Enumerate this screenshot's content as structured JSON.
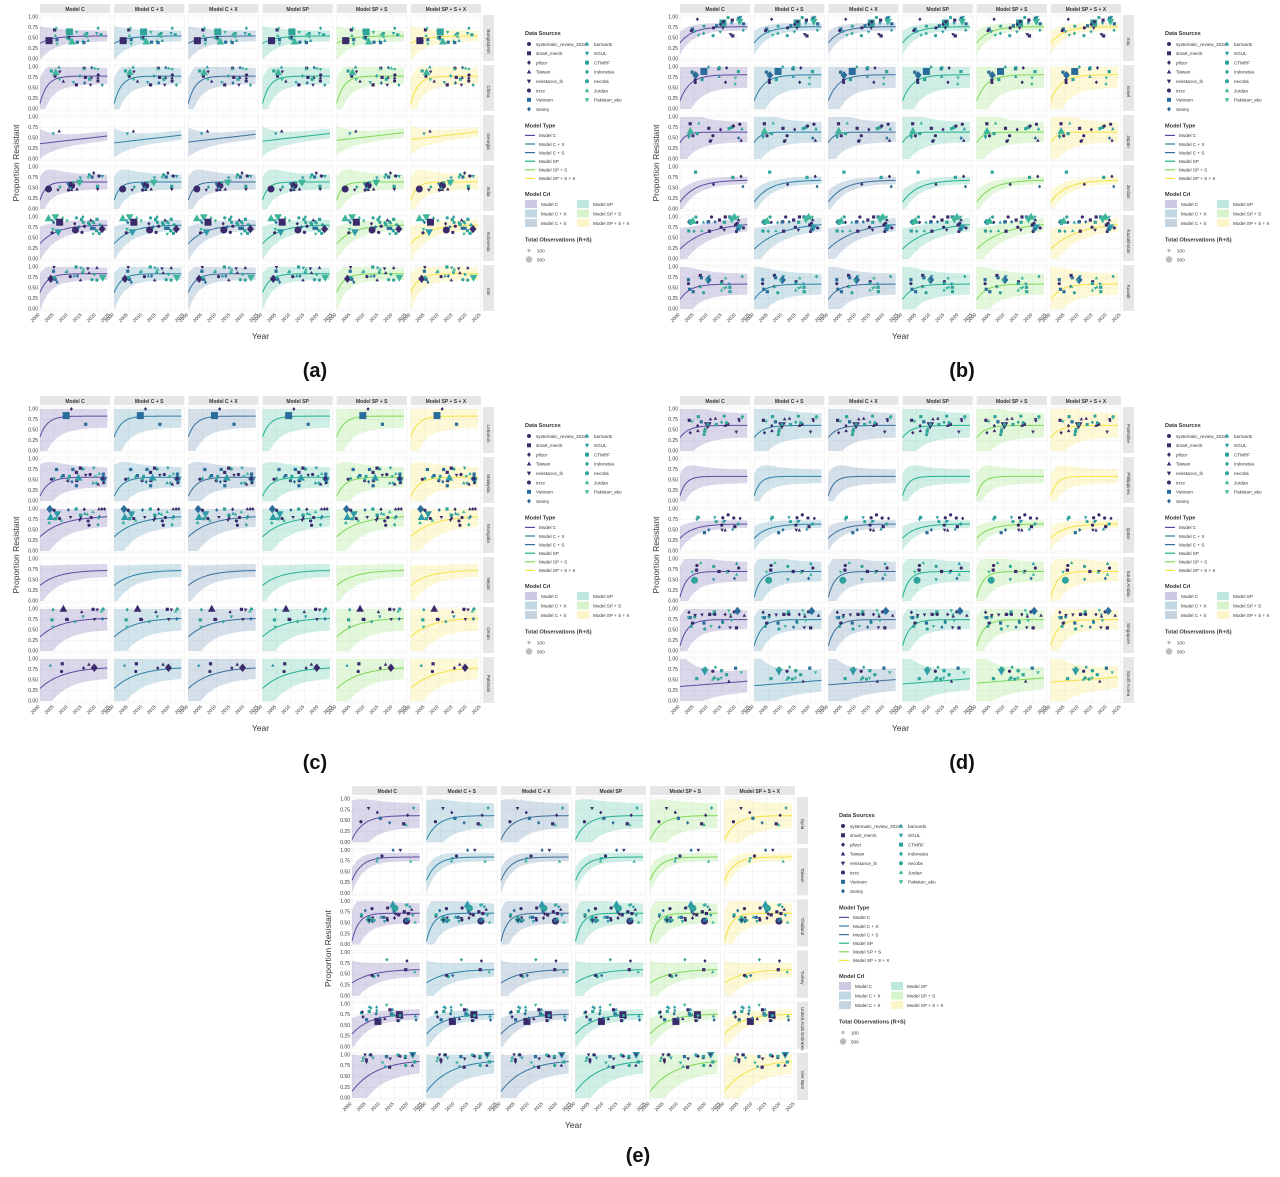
{
  "figure": {
    "ylabel": "Proportion Resistant",
    "xlabel": "Year",
    "model_labels": [
      "Model C",
      "Model C + S",
      "Model C + X",
      "Model SP",
      "Model SP + S",
      "Model SP + S + X"
    ],
    "model_colors": [
      "#5b4ba0",
      "#2e7fa5",
      "#3a6f9c",
      "#22b08b",
      "#7ed957",
      "#f4e244"
    ],
    "y_ticks": [
      "0.00",
      "0.25",
      "0.50",
      "0.75",
      "1.00"
    ],
    "x_ticks": [
      "2000",
      "2005",
      "2010",
      "2015",
      "2020",
      "2025"
    ],
    "legend": {
      "sources_title": "Data Sources",
      "sources": [
        "systematic_review_2024",
        "smart_merck",
        "pfizer",
        "Taiwan",
        "resistance_lit",
        "irzcc",
        "Vietnam",
        "Sentry",
        "barnards",
        "SGUL",
        "CTMRF",
        "Indonesia",
        "necobs",
        "Jordan",
        "Pakistan_aku"
      ],
      "model_type_title": "Model Type",
      "model_types": [
        "Model C",
        "Model C + X",
        "Model C + S",
        "Model SP",
        "Model SP + S",
        "Model SP + S + X"
      ],
      "model_cri_title": "Model CrI",
      "model_cri": [
        "Model C",
        "Model C + X",
        "Model C + S",
        "Model SP",
        "Model SP + S",
        "Model SP + S + X"
      ],
      "obs_title": "Total Observations (R+S)",
      "obs_values": [
        "100",
        "500"
      ]
    }
  },
  "chart_data": [
    {
      "type": "line",
      "panel": "(a)",
      "countries": [
        "Bangladesh",
        "China",
        "Georgia",
        "India",
        "Indonesia",
        "Iran"
      ],
      "models": [
        "Model C",
        "Model C + S",
        "Model C + X",
        "Model SP",
        "Model SP + S",
        "Model SP + S + X"
      ],
      "x": [
        2000,
        2005,
        2010,
        2015,
        2020,
        2025
      ],
      "ylim": [
        0,
        1
      ],
      "xlim": [
        2000,
        2025
      ]
    },
    {
      "type": "line",
      "panel": "(b)",
      "countries": [
        "Iraq",
        "Israel",
        "Japan",
        "Jordan",
        "Kazakhstan",
        "Kuwait"
      ],
      "models": [
        "Model C",
        "Model C + S",
        "Model C + X",
        "Model SP",
        "Model SP + S",
        "Model SP + S + X"
      ],
      "x": [
        2000,
        2005,
        2010,
        2015,
        2020,
        2025
      ],
      "ylim": [
        0,
        1
      ],
      "xlim": [
        2000,
        2025
      ]
    },
    {
      "type": "line",
      "panel": "(c)",
      "countries": [
        "Lebanon",
        "Malaysia",
        "Mongolia",
        "Nepal",
        "Oman",
        "Pakistan"
      ],
      "models": [
        "Model C",
        "Model C + S",
        "Model C + X",
        "Model SP",
        "Model SP + S",
        "Model SP + S + X"
      ],
      "x": [
        2000,
        2005,
        2010,
        2015,
        2020,
        2025
      ],
      "ylim": [
        0,
        1
      ],
      "xlim": [
        2000,
        2025
      ]
    },
    {
      "type": "line",
      "panel": "(d)",
      "countries": [
        "Palestine",
        "Philippines",
        "Qatar",
        "Saudi Arabia",
        "Singapore",
        "South Korea"
      ],
      "models": [
        "Model C",
        "Model C + S",
        "Model C + X",
        "Model SP",
        "Model SP + S",
        "Model SP + S + X"
      ],
      "x": [
        2000,
        2005,
        2010,
        2015,
        2020,
        2025
      ],
      "ylim": [
        0,
        1
      ],
      "xlim": [
        2000,
        2025
      ]
    },
    {
      "type": "line",
      "panel": "(e)",
      "countries": [
        "Syria",
        "Taiwan",
        "Thailand",
        "Turkey",
        "United Arab Emirates",
        "Viet Nam"
      ],
      "models": [
        "Model C",
        "Model C + S",
        "Model C + X",
        "Model SP",
        "Model SP + S",
        "Model SP + S + X"
      ],
      "x": [
        2000,
        2005,
        2010,
        2015,
        2020,
        2025
      ],
      "ylim": [
        0,
        1
      ],
      "xlim": [
        2000,
        2025
      ]
    }
  ]
}
